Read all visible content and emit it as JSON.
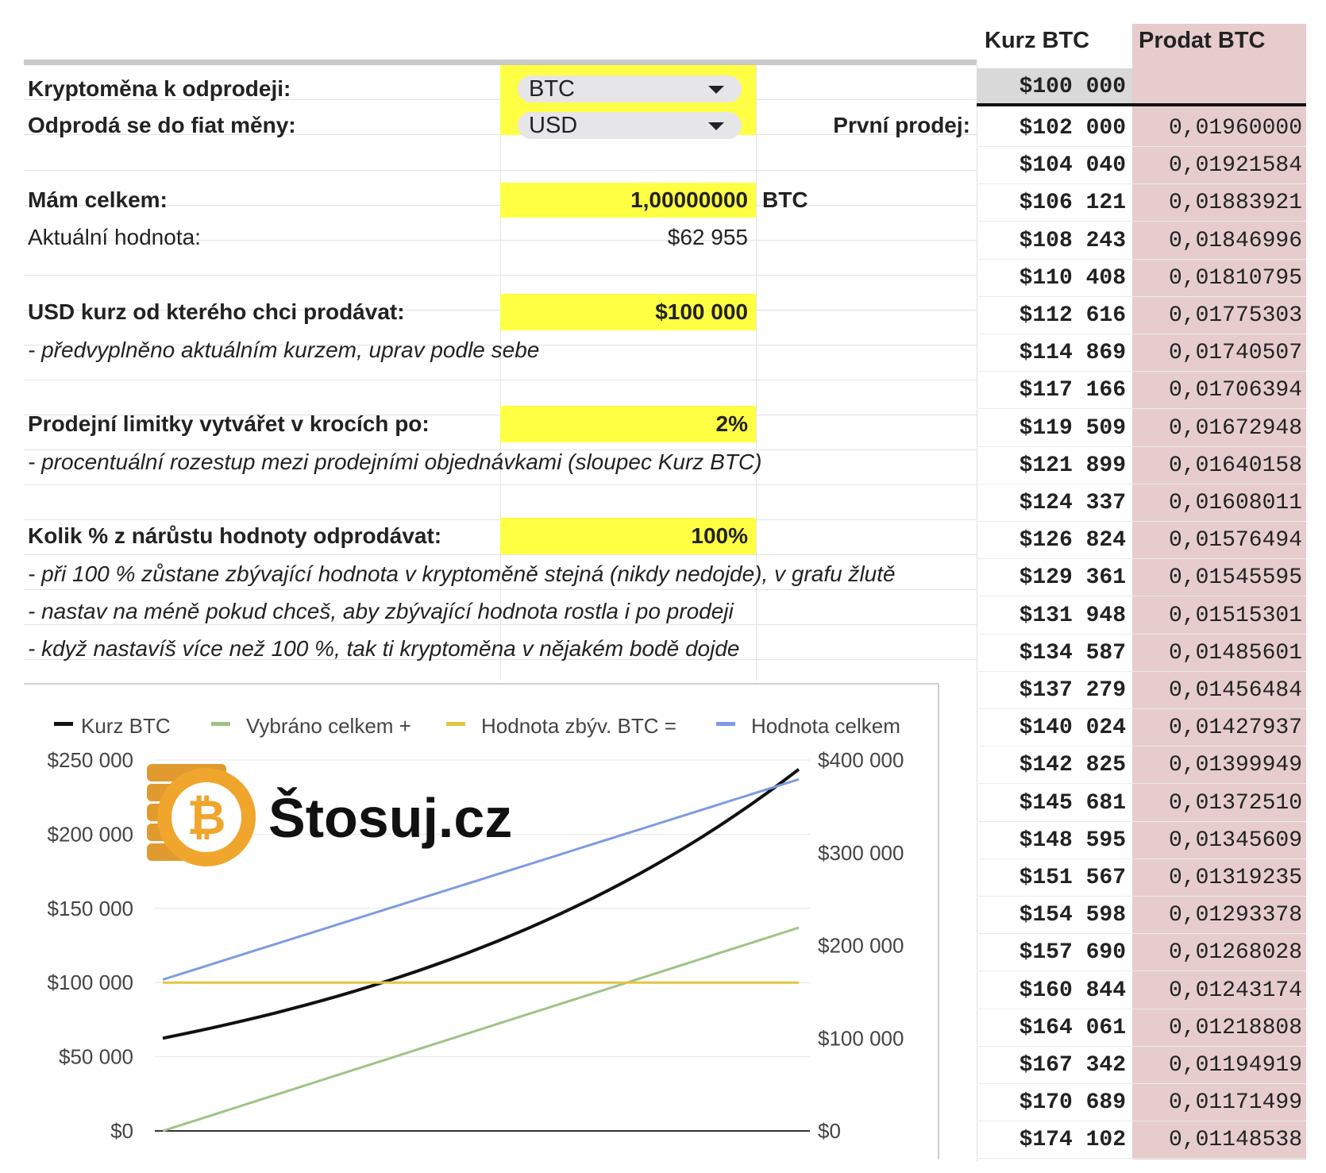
{
  "form": {
    "crypto_label": "Kryptoměna k odprodeji:",
    "crypto_value": "BTC",
    "fiat_label": "Odprodá se do fiat měny:",
    "fiat_value": "USD",
    "first_sale_label": "První prodej:",
    "total_label": "Mám celkem:",
    "total_value": "1,00000000",
    "total_unit": "BTC",
    "current_value_label": "Aktuální hodnota:",
    "current_value": "$62 955",
    "start_rate_label": "USD kurz od kterého chci prodávat:",
    "start_rate_value": "$100 000",
    "start_rate_note": "- předvyplněno aktuálním kurzem, uprav podle sebe",
    "step_label": "Prodejní limitky vytvářet v krocích po:",
    "step_value": "2%",
    "step_note": "- procentuální rozestup mezi prodejními objednávkami (sloupec Kurz BTC)",
    "sell_pct_label": "Kolik % z nárůstu hodnoty odprodávat:",
    "sell_pct_value": "100%",
    "sell_notes": [
      "- při 100 % zůstane zbývající hodnota v kryptoměně stejná (nikdy nedojde), v grafu žlutě",
      "- nastav na méně pokud chceš, aby zbývající hodnota rostla i po prodeji",
      "- když nastavíš více než 100 %, tak ti kryptoměna v nějakém bodě dojde"
    ]
  },
  "table": {
    "headers": [
      "Kurz BTC",
      "Prodat BTC"
    ],
    "first_rate": "$100 000",
    "rows": [
      [
        "$102 000",
        "0,01960000"
      ],
      [
        "$104 040",
        "0,01921584"
      ],
      [
        "$106 121",
        "0,01883921"
      ],
      [
        "$108 243",
        "0,01846996"
      ],
      [
        "$110 408",
        "0,01810795"
      ],
      [
        "$112 616",
        "0,01775303"
      ],
      [
        "$114 869",
        "0,01740507"
      ],
      [
        "$117 166",
        "0,01706394"
      ],
      [
        "$119 509",
        "0,01672948"
      ],
      [
        "$121 899",
        "0,01640158"
      ],
      [
        "$124 337",
        "0,01608011"
      ],
      [
        "$126 824",
        "0,01576494"
      ],
      [
        "$129 361",
        "0,01545595"
      ],
      [
        "$131 948",
        "0,01515301"
      ],
      [
        "$134 587",
        "0,01485601"
      ],
      [
        "$137 279",
        "0,01456484"
      ],
      [
        "$140 024",
        "0,01427937"
      ],
      [
        "$142 825",
        "0,01399949"
      ],
      [
        "$145 681",
        "0,01372510"
      ],
      [
        "$148 595",
        "0,01345609"
      ],
      [
        "$151 567",
        "0,01319235"
      ],
      [
        "$154 598",
        "0,01293378"
      ],
      [
        "$157 690",
        "0,01268028"
      ],
      [
        "$160 844",
        "0,01243174"
      ],
      [
        "$164 061",
        "0,01218808"
      ],
      [
        "$167 342",
        "0,01194919"
      ],
      [
        "$170 689",
        "0,01171499"
      ],
      [
        "$174 102",
        "0,01148538"
      ]
    ]
  },
  "logo": {
    "text": "Štosuj.cz",
    "symbol": "bitcoin-coin-icon"
  },
  "chart_data": {
    "type": "line",
    "legend": [
      "Kurz BTC",
      "Vybráno celkem +",
      "Hodnota zbýv. BTC =",
      "Hodnota celkem"
    ],
    "legend_position": "top",
    "colors": [
      "#111111",
      "#9fc285",
      "#e2c542",
      "#7d9be0"
    ],
    "left_axis": {
      "ticks": [
        "$0",
        "$50 000",
        "$100 000",
        "$150 000",
        "$200 000",
        "$250 000"
      ],
      "range": [
        0,
        250000
      ]
    },
    "right_axis": {
      "ticks": [
        "$0",
        "$100 000",
        "$200 000",
        "$300 000",
        "$400 000"
      ],
      "range": [
        0,
        400000
      ]
    },
    "x_steps": 40,
    "series": [
      {
        "name": "Kurz BTC",
        "axis": "right",
        "start": 100000,
        "end": 390000
      },
      {
        "name": "Vybráno celkem +",
        "axis": "left",
        "start": 0,
        "end": 137000
      },
      {
        "name": "Hodnota zbýv. BTC =",
        "axis": "left",
        "start": 100000,
        "end": 100000
      },
      {
        "name": "Hodnota celkem",
        "axis": "left",
        "start": 102000,
        "end": 237000
      }
    ]
  }
}
